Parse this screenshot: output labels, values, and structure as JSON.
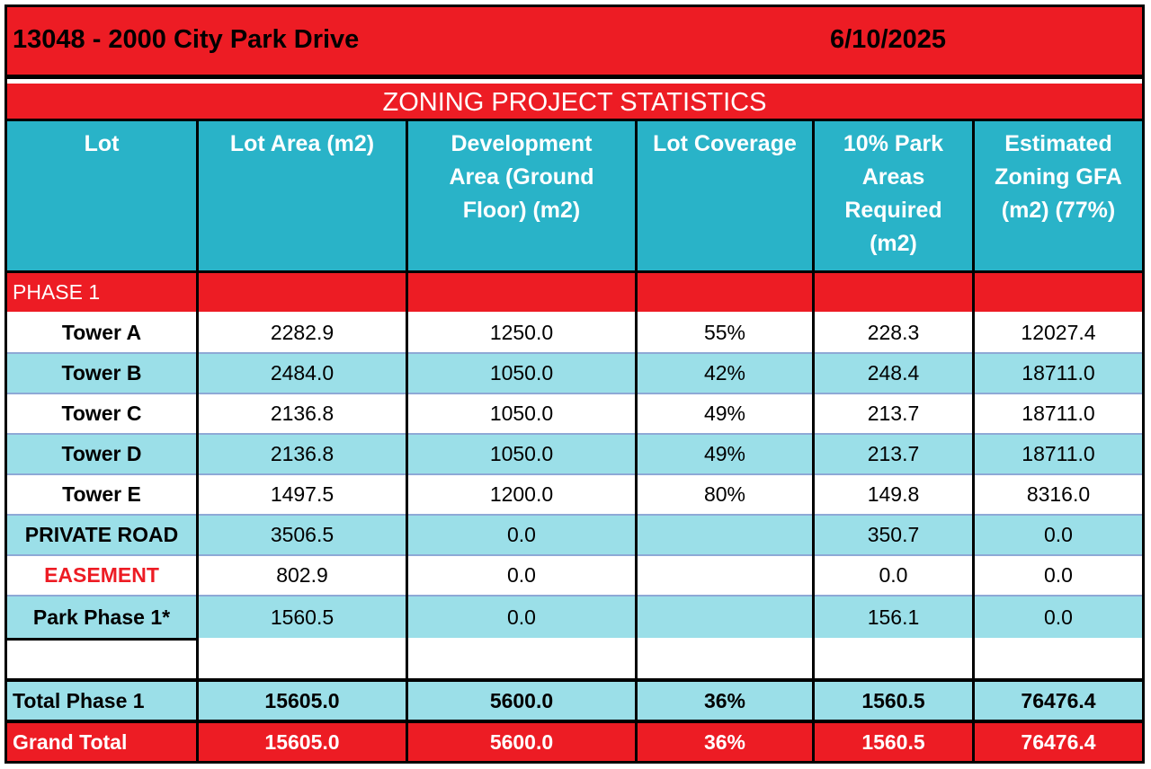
{
  "header": {
    "project": "13048 - 2000 City Park Drive",
    "date": "6/10/2025"
  },
  "subtitle": "ZONING PROJECT STATISTICS",
  "columns": [
    "Lot",
    "Lot Area (m2)",
    "Development Area (Ground Floor) (m2)",
    "Lot Coverage",
    "10% Park Areas Required (m2)",
    "Estimated Zoning GFA (m2) (77%)"
  ],
  "phase_label": "PHASE 1",
  "rows": [
    {
      "lot": "Tower A",
      "area": "2282.9",
      "dev": "1250.0",
      "cov": "55%",
      "park": "228.3",
      "gfa": "12027.4"
    },
    {
      "lot": "Tower B",
      "area": "2484.0",
      "dev": "1050.0",
      "cov": "42%",
      "park": "248.4",
      "gfa": "18711.0"
    },
    {
      "lot": "Tower C",
      "area": "2136.8",
      "dev": "1050.0",
      "cov": "49%",
      "park": "213.7",
      "gfa": "18711.0"
    },
    {
      "lot": "Tower D",
      "area": "2136.8",
      "dev": "1050.0",
      "cov": "49%",
      "park": "213.7",
      "gfa": "18711.0"
    },
    {
      "lot": "Tower E",
      "area": "1497.5",
      "dev": "1200.0",
      "cov": "80%",
      "park": "149.8",
      "gfa": "8316.0"
    },
    {
      "lot": "PRIVATE ROAD",
      "area": "3506.5",
      "dev": "0.0",
      "cov": "",
      "park": "350.7",
      "gfa": "0.0"
    },
    {
      "lot": "EASEMENT",
      "area": "802.9",
      "dev": "0.0",
      "cov": "",
      "park": "0.0",
      "gfa": "0.0"
    },
    {
      "lot": "Park Phase 1*",
      "area": "1560.5",
      "dev": "0.0",
      "cov": "",
      "park": "156.1",
      "gfa": "0.0"
    }
  ],
  "total_phase": {
    "label": "Total Phase 1",
    "area": "15605.0",
    "dev": "5600.0",
    "cov": "36%",
    "park": "1560.5",
    "gfa": "76476.4"
  },
  "grand_total": {
    "label": "Grand Total",
    "area": "15605.0",
    "dev": "5600.0",
    "cov": "36%",
    "park": "1560.5",
    "gfa": "76476.4"
  },
  "colors": {
    "red": "#ed1c24",
    "teal_header": "#29b3c8",
    "teal_row": "#9bdfe8",
    "easement_text": "#ed1c24"
  }
}
